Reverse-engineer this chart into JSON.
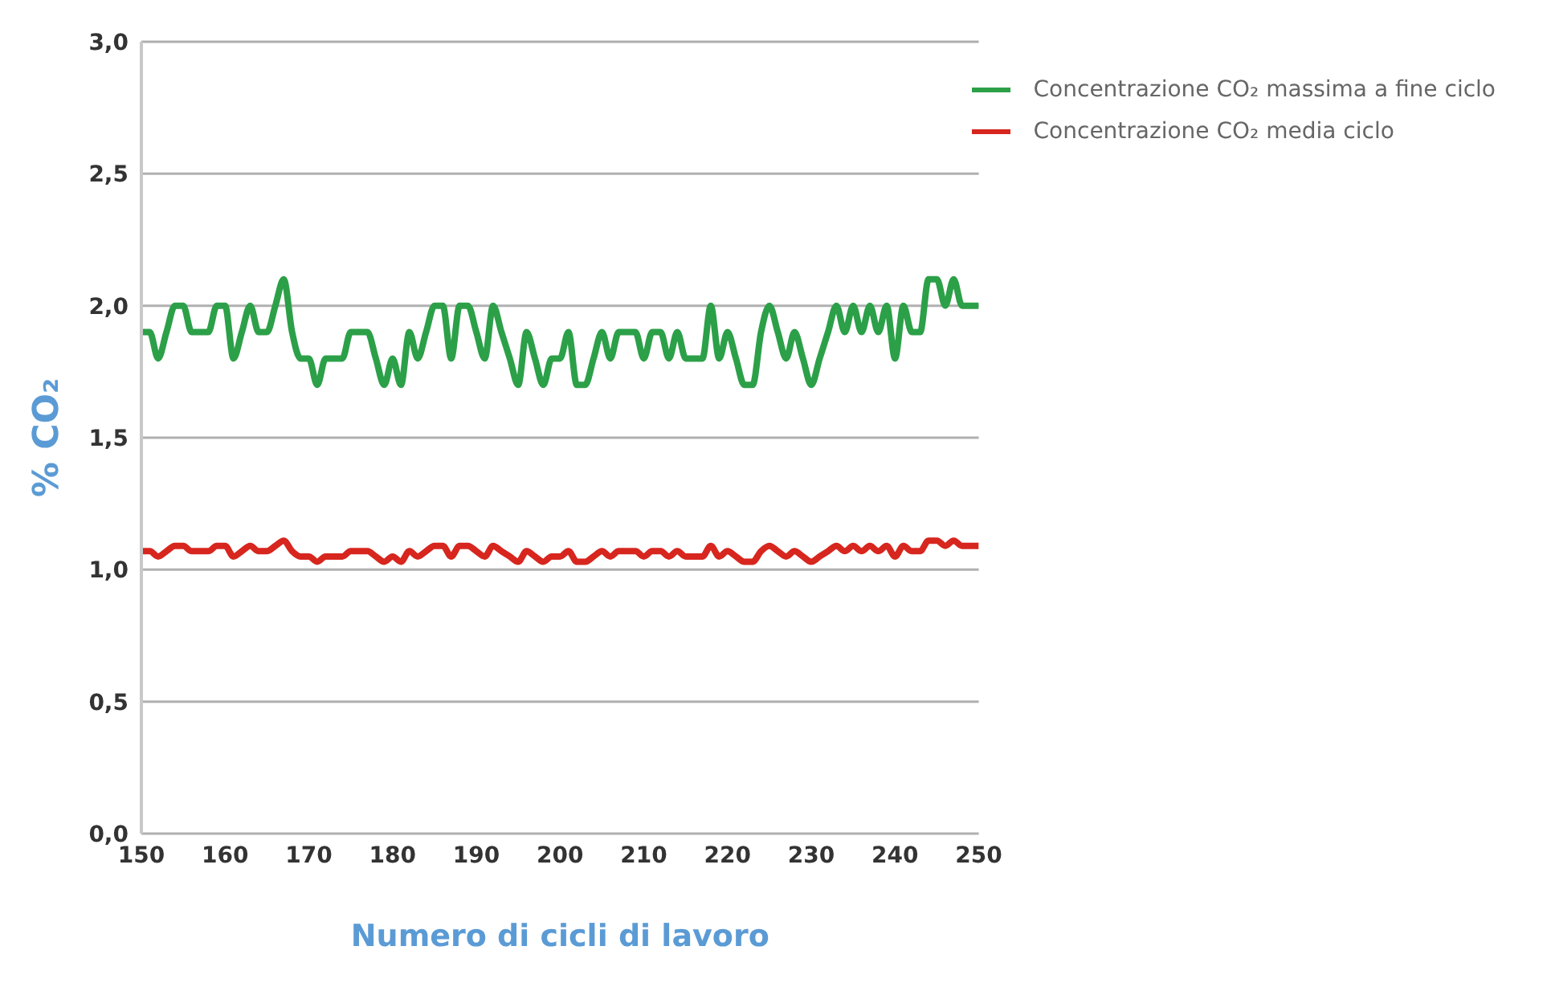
{
  "chart_data": {
    "type": "line",
    "xlabel": "Numero di cicli di lavoro",
    "ylabel": "% CO₂",
    "x": [
      150,
      151,
      152,
      153,
      154,
      155,
      156,
      157,
      158,
      159,
      160,
      161,
      162,
      163,
      164,
      165,
      166,
      167,
      168,
      169,
      170,
      171,
      172,
      173,
      174,
      175,
      176,
      177,
      178,
      179,
      180,
      181,
      182,
      183,
      184,
      185,
      186,
      187,
      188,
      189,
      190,
      191,
      192,
      193,
      194,
      195,
      196,
      197,
      198,
      199,
      200,
      201,
      202,
      203,
      204,
      205,
      206,
      207,
      208,
      209,
      210,
      211,
      212,
      213,
      214,
      215,
      216,
      217,
      218,
      219,
      220,
      221,
      222,
      223,
      224,
      225,
      226,
      227,
      228,
      229,
      230,
      231,
      232,
      233,
      234,
      235,
      236,
      237,
      238,
      239,
      240,
      241,
      242,
      243,
      244,
      245,
      246,
      247,
      248,
      249,
      250
    ],
    "series": [
      {
        "name": "Concentrazione CO₂ massima a fine ciclo",
        "color": "#2ca048",
        "values": [
          1.9,
          1.9,
          1.8,
          1.9,
          2.0,
          2.0,
          1.9,
          1.9,
          1.9,
          2.0,
          2.0,
          1.8,
          1.9,
          2.0,
          1.9,
          1.9,
          2.0,
          2.1,
          1.9,
          1.8,
          1.8,
          1.7,
          1.8,
          1.8,
          1.8,
          1.9,
          1.9,
          1.9,
          1.8,
          1.7,
          1.8,
          1.7,
          1.9,
          1.8,
          1.9,
          2.0,
          2.0,
          1.8,
          2.0,
          2.0,
          1.9,
          1.8,
          2.0,
          1.9,
          1.8,
          1.7,
          1.9,
          1.8,
          1.7,
          1.8,
          1.8,
          1.9,
          1.7,
          1.7,
          1.8,
          1.9,
          1.8,
          1.9,
          1.9,
          1.9,
          1.8,
          1.9,
          1.9,
          1.8,
          1.9,
          1.8,
          1.8,
          1.8,
          2.0,
          1.8,
          1.9,
          1.8,
          1.7,
          1.7,
          1.9,
          2.0,
          1.9,
          1.8,
          1.9,
          1.8,
          1.7,
          1.8,
          1.9,
          2.0,
          1.9,
          2.0,
          1.9,
          2.0,
          1.9,
          2.0,
          1.8,
          2.0,
          1.9,
          1.9,
          2.1,
          2.1,
          2.0,
          2.1,
          2.0,
          2.0,
          2.0
        ]
      },
      {
        "name": "Concentrazione CO₂ media ciclo",
        "color": "#d7261e",
        "values": [
          1.07,
          1.07,
          1.05,
          1.07,
          1.09,
          1.09,
          1.07,
          1.07,
          1.07,
          1.09,
          1.09,
          1.05,
          1.07,
          1.09,
          1.07,
          1.07,
          1.09,
          1.11,
          1.07,
          1.05,
          1.05,
          1.03,
          1.05,
          1.05,
          1.05,
          1.07,
          1.07,
          1.07,
          1.05,
          1.03,
          1.05,
          1.03,
          1.07,
          1.05,
          1.07,
          1.09,
          1.09,
          1.05,
          1.09,
          1.09,
          1.07,
          1.05,
          1.09,
          1.07,
          1.05,
          1.03,
          1.07,
          1.05,
          1.03,
          1.05,
          1.05,
          1.07,
          1.03,
          1.03,
          1.05,
          1.07,
          1.05,
          1.07,
          1.07,
          1.07,
          1.05,
          1.07,
          1.07,
          1.05,
          1.07,
          1.05,
          1.05,
          1.05,
          1.09,
          1.05,
          1.07,
          1.05,
          1.03,
          1.03,
          1.07,
          1.09,
          1.07,
          1.05,
          1.07,
          1.05,
          1.03,
          1.05,
          1.07,
          1.09,
          1.07,
          1.09,
          1.07,
          1.09,
          1.07,
          1.09,
          1.05,
          1.09,
          1.07,
          1.07,
          1.11,
          1.11,
          1.09,
          1.11,
          1.09,
          1.09,
          1.09
        ]
      }
    ],
    "xlim": [
      150,
      250
    ],
    "xticks": [
      150,
      160,
      170,
      180,
      190,
      200,
      210,
      220,
      230,
      240,
      250
    ],
    "ylim": [
      0,
      3
    ],
    "yticks": [
      {
        "value": 0,
        "label": "0,0"
      },
      {
        "value": 0.5,
        "label": "0,5"
      },
      {
        "value": 1,
        "label": "1,0"
      },
      {
        "value": 1.5,
        "label": "1,5"
      },
      {
        "value": 2,
        "label": "2,0"
      },
      {
        "value": 2.5,
        "label": "2,5"
      },
      {
        "value": 3,
        "label": "3,0"
      }
    ],
    "grid": "y",
    "legend": "top right",
    "marker": "none",
    "line_style": "solid"
  }
}
